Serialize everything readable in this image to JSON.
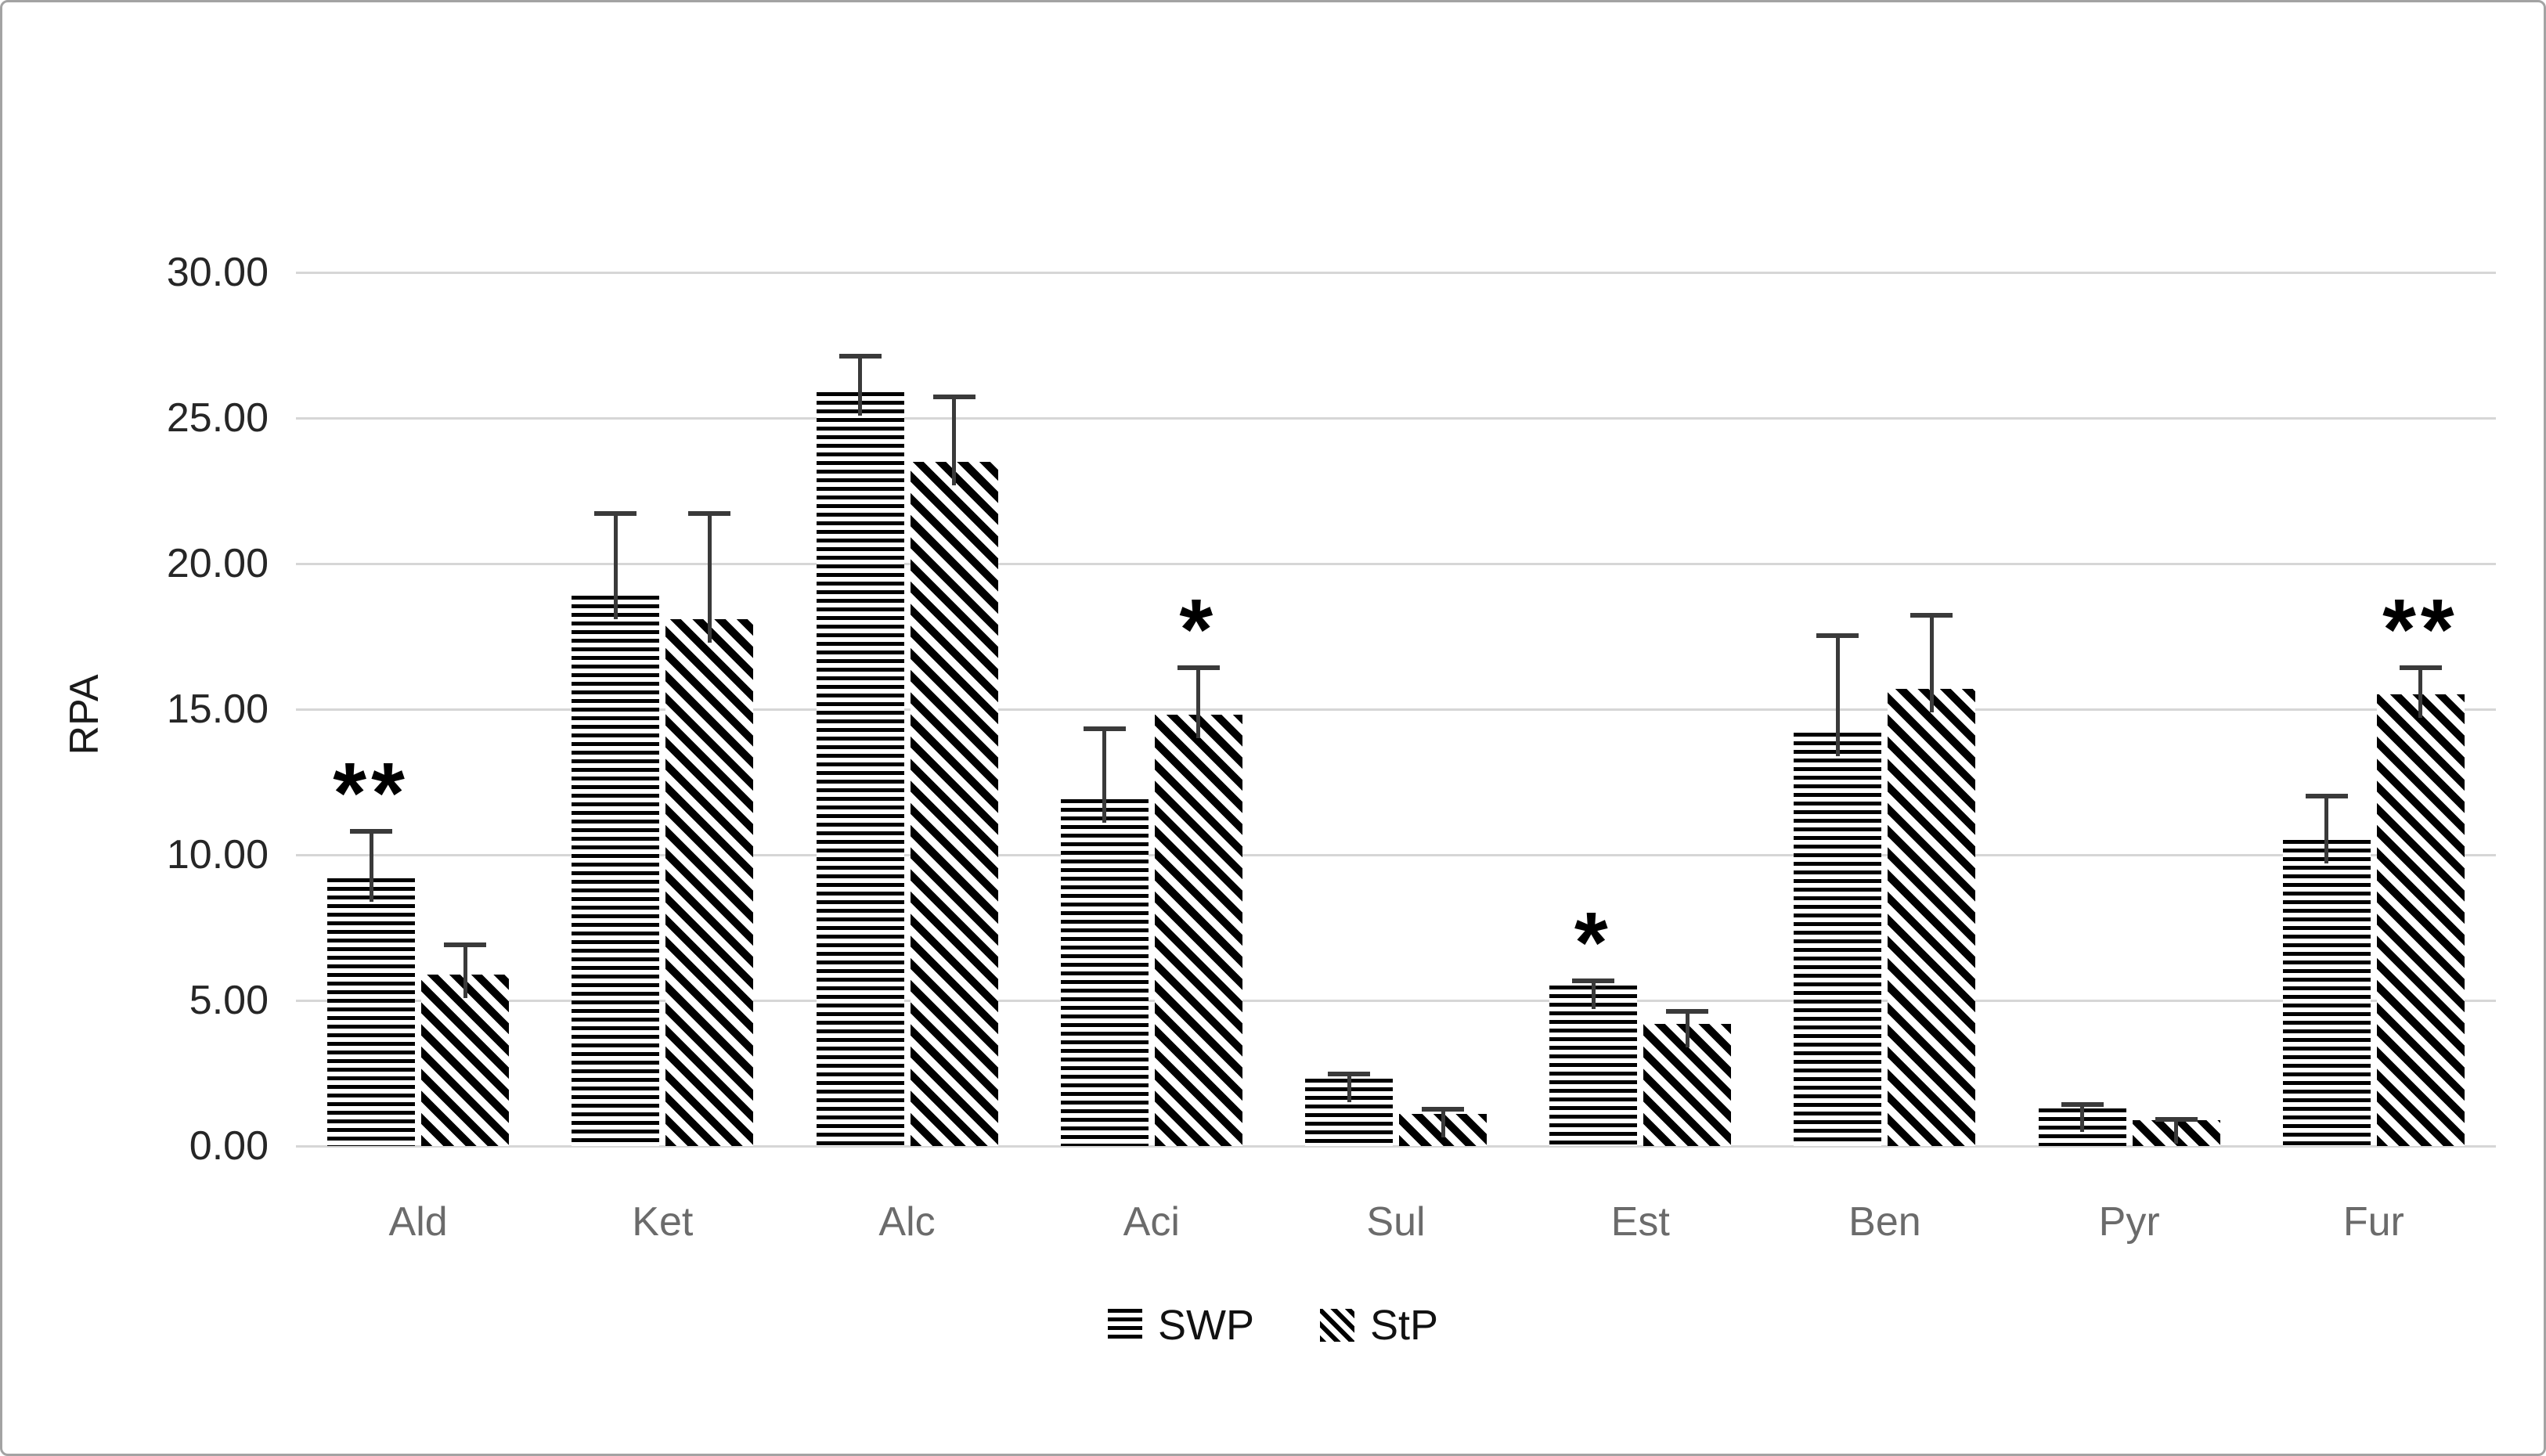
{
  "chart_data": {
    "type": "bar",
    "title": "",
    "ylabel": "RPA",
    "xlabel": "",
    "ylim": [
      0,
      30
    ],
    "ytick_step": 5,
    "ytick_labels": [
      "0.00",
      "5.00",
      "10.00",
      "15.00",
      "20.00",
      "25.00",
      "30.00"
    ],
    "grid": true,
    "legend_position": "bottom",
    "categories": [
      "Ald",
      "Ket",
      "Alc",
      "Aci",
      "Sul",
      "Est",
      "Ben",
      "Pyr",
      "Fur"
    ],
    "series": [
      {
        "name": "SWP",
        "pattern": "horizontal-stripes",
        "values": [
          9.2,
          18.9,
          25.9,
          11.9,
          2.3,
          5.5,
          14.2,
          1.3,
          10.5
        ],
        "errors": [
          1.7,
          2.9,
          1.3,
          2.5,
          0.25,
          0.25,
          3.4,
          0.2,
          1.6
        ],
        "significance": [
          "**",
          "",
          "",
          "",
          "",
          "*",
          "",
          "",
          ""
        ]
      },
      {
        "name": "StP",
        "pattern": "diagonal-stripes",
        "values": [
          5.9,
          18.1,
          23.5,
          14.8,
          1.1,
          4.2,
          15.7,
          0.9,
          15.5
        ],
        "errors": [
          1.1,
          3.7,
          2.3,
          1.7,
          0.25,
          0.5,
          2.6,
          0.1,
          1.0
        ],
        "significance": [
          "",
          "",
          "",
          "*",
          "",
          "",
          "",
          "",
          "**"
        ]
      }
    ]
  },
  "legend": {
    "swp_icon": "horizontal-stripes-icon",
    "stp_icon": "diagonal-stripes-icon"
  },
  "colors": {
    "bar_fill": "#000000",
    "bar_background": "#ffffff",
    "gridline": "#d6d6d6",
    "error_bar": "#3a3a3a",
    "tick_label": "#262626",
    "category_label": "#6b6b6b",
    "axis_title": "#1a1a1a",
    "significance": "#000000",
    "figure_border": "#a3a3a3"
  }
}
